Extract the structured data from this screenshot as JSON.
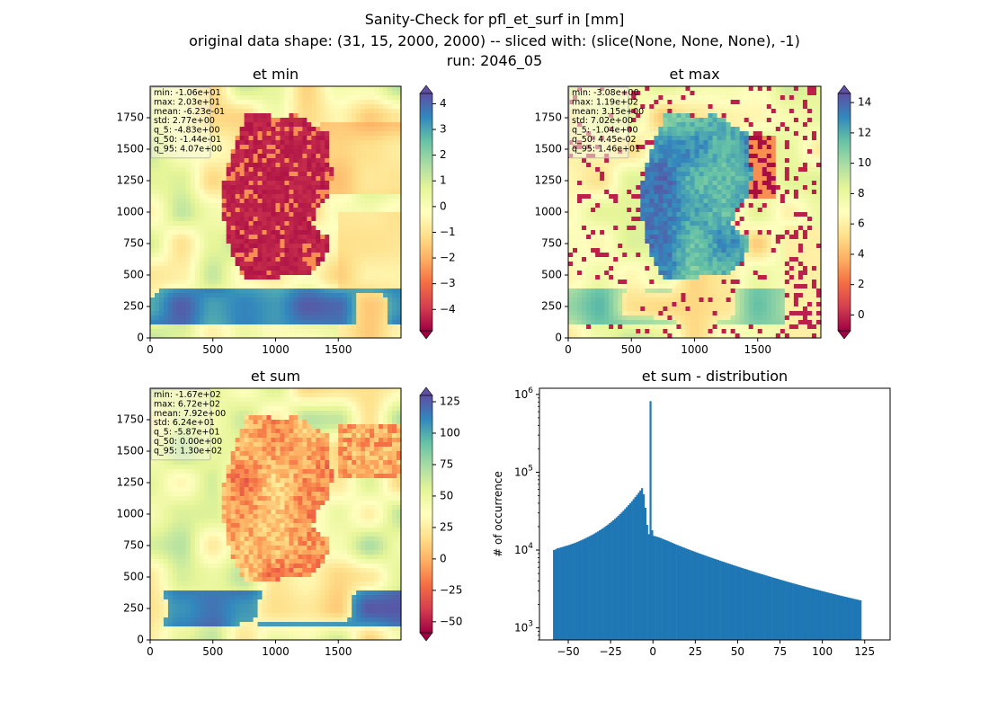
{
  "figure": {
    "title_line1": "Sanity-Check for pfl_et_surf in [mm]",
    "title_line2": "original data shape: (31, 15, 2000, 2000) -- sliced with: (slice(None, None, None), -1)",
    "title_line3": "run: 2046_05"
  },
  "maps": [
    {
      "title": "et min",
      "stats": [
        "min: -1.06e+01",
        "max: 2.03e+01",
        "mean: -6.23e-01",
        "std: 2.77e+00",
        "q_5: -4.83e+00",
        "q_50: -1.44e-01",
        "q_95: 4.07e+00"
      ],
      "x_ticks": [
        "0",
        "500",
        "1000",
        "1500"
      ],
      "y_ticks": [
        "0",
        "250",
        "500",
        "750",
        "1000",
        "1250",
        "1500",
        "1750"
      ],
      "colorbar": {
        "vmin": -4.83,
        "vmax": 4.4,
        "ticks": [
          4,
          3,
          2,
          1,
          0,
          -1,
          -2,
          -3,
          -4
        ],
        "tick_labels": [
          "4",
          "3",
          "2",
          "1",
          "0",
          "−1",
          "−2",
          "−3",
          "−4"
        ],
        "extend": "both",
        "cmap": "Spectral"
      }
    },
    {
      "title": "et max",
      "stats": [
        "min: -3.08e+00",
        "max: 1.19e+02",
        "mean: 3.15e+00",
        "std: 7.02e+00",
        "q_5: -1.04e+00",
        "q_50: 4.45e-02",
        "q_95: 1.46e+01"
      ],
      "x_ticks": [
        "0",
        "500",
        "1000",
        "1500"
      ],
      "y_ticks": [
        "0",
        "250",
        "500",
        "750",
        "1000",
        "1250",
        "1500",
        "1750"
      ],
      "colorbar": {
        "vmin": -1.04,
        "vmax": 14.6,
        "ticks": [
          14,
          12,
          10,
          8,
          6,
          4,
          2,
          0
        ],
        "tick_labels": [
          "14",
          "12",
          "10",
          "8",
          "6",
          "4",
          "2",
          "0"
        ],
        "extend": "both",
        "cmap": "Spectral"
      }
    },
    {
      "title": "et sum",
      "stats": [
        "min: -1.67e+02",
        "max: 6.72e+02",
        "mean: 7.92e+00",
        "std: 6.24e+01",
        "q_5: -5.87e+01",
        "q_50: 0.00e+00",
        "q_95: 1.30e+02"
      ],
      "x_ticks": [
        "0",
        "500",
        "1000",
        "1500"
      ],
      "y_ticks": [
        "0",
        "250",
        "500",
        "750",
        "1000",
        "1250",
        "1500",
        "1750"
      ],
      "colorbar": {
        "vmin": -58.7,
        "vmax": 130,
        "ticks": [
          125,
          100,
          75,
          50,
          25,
          0,
          -25,
          -50
        ],
        "tick_labels": [
          "125",
          "100",
          "75",
          "50",
          "25",
          "0",
          "−25",
          "−50"
        ],
        "extend": "both",
        "cmap": "Spectral"
      }
    }
  ],
  "chart_data": {
    "type": "bar",
    "title": "et sum - distribution",
    "xlabel": "",
    "ylabel": "# of occurrence",
    "yscale": "log",
    "xlim": [
      -67,
      140
    ],
    "ylim": [
      700,
      1200000
    ],
    "x_tick_values": [
      -50,
      -25,
      0,
      25,
      50,
      75,
      100,
      125
    ],
    "x_tick_labels": [
      "−50",
      "−25",
      "0",
      "25",
      "50",
      "75",
      "100",
      "125"
    ],
    "y_tick_values": [
      1000,
      10000,
      100000,
      1000000
    ],
    "y_tick_labels": [
      "10^3",
      "10^4",
      "10^5",
      "10^6"
    ],
    "color": "#1f77b4",
    "bin_width": 1,
    "x_start": -59,
    "counts": [
      10031,
      10192,
      10531,
      10624,
      10790,
      10951,
      11105,
      11298,
      11456,
      11629,
      11834,
      12036,
      12269,
      12492,
      12761,
      13038,
      13332,
      13639,
      13961,
      14318,
      14685,
      15043,
      15439,
      15861,
      16342,
      16839,
      17331,
      17898,
      18496,
      19112,
      19786,
      20548,
      21311,
      22201,
      23102,
      24090,
      25176,
      26328,
      27552,
      28931,
      30396,
      31987,
      33722,
      35654,
      37721,
      39902,
      42324,
      44998,
      47919,
      51052,
      54489,
      58245,
      62403,
      52006,
      35012,
      21036,
      16012,
      820000,
      17956,
      15211,
      15012,
      14788,
      14541,
      14289,
      13997,
      13689,
      13430,
      13169,
      12894,
      12612,
      12335,
      12064,
      11803,
      11572,
      11337,
      11118,
      10902,
      10705,
      10491,
      10290,
      10089,
      9908,
      9722,
      9541,
      9375,
      9191,
      9025,
      8864,
      8703,
      8552,
      8406,
      8251,
      8108,
      7964,
      7831,
      7694,
      7572,
      7441,
      7310,
      7186,
      7067,
      6948,
      6831,
      6718,
      6611,
      6501,
      6394,
      6290,
      6185,
      6089,
      5990,
      5893,
      5801,
      5712,
      5621,
      5530,
      5444,
      5362,
      5274,
      5192,
      5114,
      5033,
      4958,
      4883,
      4808,
      4734,
      4664,
      4595,
      4526,
      4459,
      4394,
      4331,
      4268,
      4203,
      4143,
      4082,
      4024,
      3966,
      3910,
      3855,
      3801,
      3747,
      3695,
      3644,
      3594,
      3544,
      3496,
      3449,
      3403,
      3357,
      3313,
      3269,
      3226,
      3184,
      3143,
      3102,
      3062,
      3023,
      2984,
      2946,
      2909,
      2872,
      2836,
      2801,
      2766,
      2732,
      2698,
      2665,
      2633,
      2601,
      2570,
      2539,
      2509,
      2479,
      2450,
      2421,
      2393,
      2365,
      2338,
      2311,
      2285,
      2259
    ]
  }
}
